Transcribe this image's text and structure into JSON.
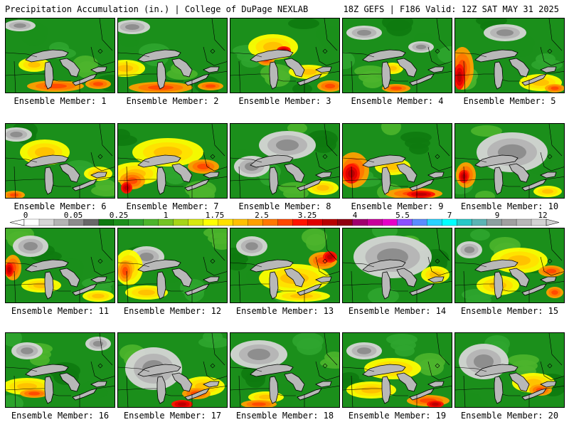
{
  "header": {
    "left": "Precipitation Accumulation (in.) | College of DuPage NEXLAB",
    "right": "18Z GEFS | F186 Valid: 12Z SAT MAY 31 2025"
  },
  "members": [
    {
      "label": "Ensemble Member: 1"
    },
    {
      "label": "Ensemble Member: 2"
    },
    {
      "label": "Ensemble Member: 3"
    },
    {
      "label": "Ensemble Member: 4"
    },
    {
      "label": "Ensemble Member: 5"
    },
    {
      "label": "Ensemble Member: 6"
    },
    {
      "label": "Ensemble Member: 7"
    },
    {
      "label": "Ensemble Member: 8"
    },
    {
      "label": "Ensemble Member: 9"
    },
    {
      "label": "Ensemble Member: 10"
    },
    {
      "label": "Ensemble Member: 11"
    },
    {
      "label": "Ensemble Member: 12"
    },
    {
      "label": "Ensemble Member: 13"
    },
    {
      "label": "Ensemble Member: 14"
    },
    {
      "label": "Ensemble Member: 15"
    },
    {
      "label": "Ensemble Member: 16"
    },
    {
      "label": "Ensemble Member: 17"
    },
    {
      "label": "Ensemble Member: 18"
    },
    {
      "label": "Ensemble Member: 19"
    },
    {
      "label": "Ensemble Member: 20"
    }
  ],
  "colorbar": {
    "ticks": [
      "0",
      "0.05",
      "0.25",
      "1",
      "1.75",
      "2.5",
      "3.25",
      "4",
      "5.5",
      "7",
      "9",
      "12"
    ],
    "colors": [
      "#ffffff",
      "#d6d6d6",
      "#b4b4b4",
      "#8c8c8c",
      "#686868",
      "#0e7a10",
      "#1b8f1b",
      "#2fa52f",
      "#4cb52c",
      "#74c424",
      "#a6d418",
      "#d8e810",
      "#ffff00",
      "#ffe000",
      "#ffc000",
      "#ffa000",
      "#ff7800",
      "#ff4800",
      "#ff1400",
      "#e00000",
      "#b80000",
      "#900010",
      "#a0006e",
      "#c8009b",
      "#e600c8",
      "#8c50ff",
      "#5a8cff",
      "#28d2ff",
      "#00ffff",
      "#28c8c8",
      "#5ab4b4",
      "#8ca0a0",
      "#a0a0a0",
      "#b8b8b8",
      "#d2d2d2"
    ]
  }
}
